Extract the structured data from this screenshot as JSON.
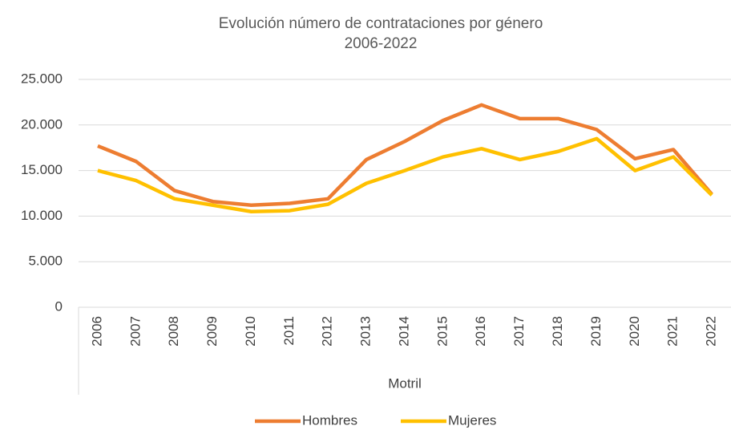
{
  "chart_data": {
    "type": "line",
    "title": "Evolución número de contrataciones por género",
    "subtitle": "2006-2022",
    "x_group_label": "Motril",
    "categories": [
      "2006",
      "2007",
      "2008",
      "2009",
      "2010",
      "2011",
      "2012",
      "2013",
      "2014",
      "2015",
      "2016",
      "2017",
      "2018",
      "2019",
      "2020",
      "2021",
      "2022"
    ],
    "series": [
      {
        "name": "Hombres",
        "color": "#ed7d31",
        "values": [
          17700,
          16000,
          12800,
          11600,
          11200,
          11400,
          11900,
          16200,
          18200,
          20500,
          22200,
          20700,
          20700,
          19500,
          16300,
          17300,
          12400
        ]
      },
      {
        "name": "Mujeres",
        "color": "#ffc000",
        "values": [
          15000,
          13900,
          11900,
          11200,
          10500,
          10600,
          11300,
          13600,
          15000,
          16500,
          17400,
          16200,
          17100,
          18500,
          15000,
          16500,
          12300
        ]
      }
    ],
    "ylim": [
      0,
      25000
    ],
    "yticks": [
      0,
      {
        "value": 5000,
        "label": "5.000"
      },
      {
        "value": 10000,
        "label": "10.000"
      },
      {
        "value": 15000,
        "label": "15.000"
      },
      {
        "value": 20000,
        "label": "20.000"
      },
      {
        "value": 25000,
        "label": "25.000"
      }
    ],
    "grid": true,
    "legend": "bottom"
  }
}
